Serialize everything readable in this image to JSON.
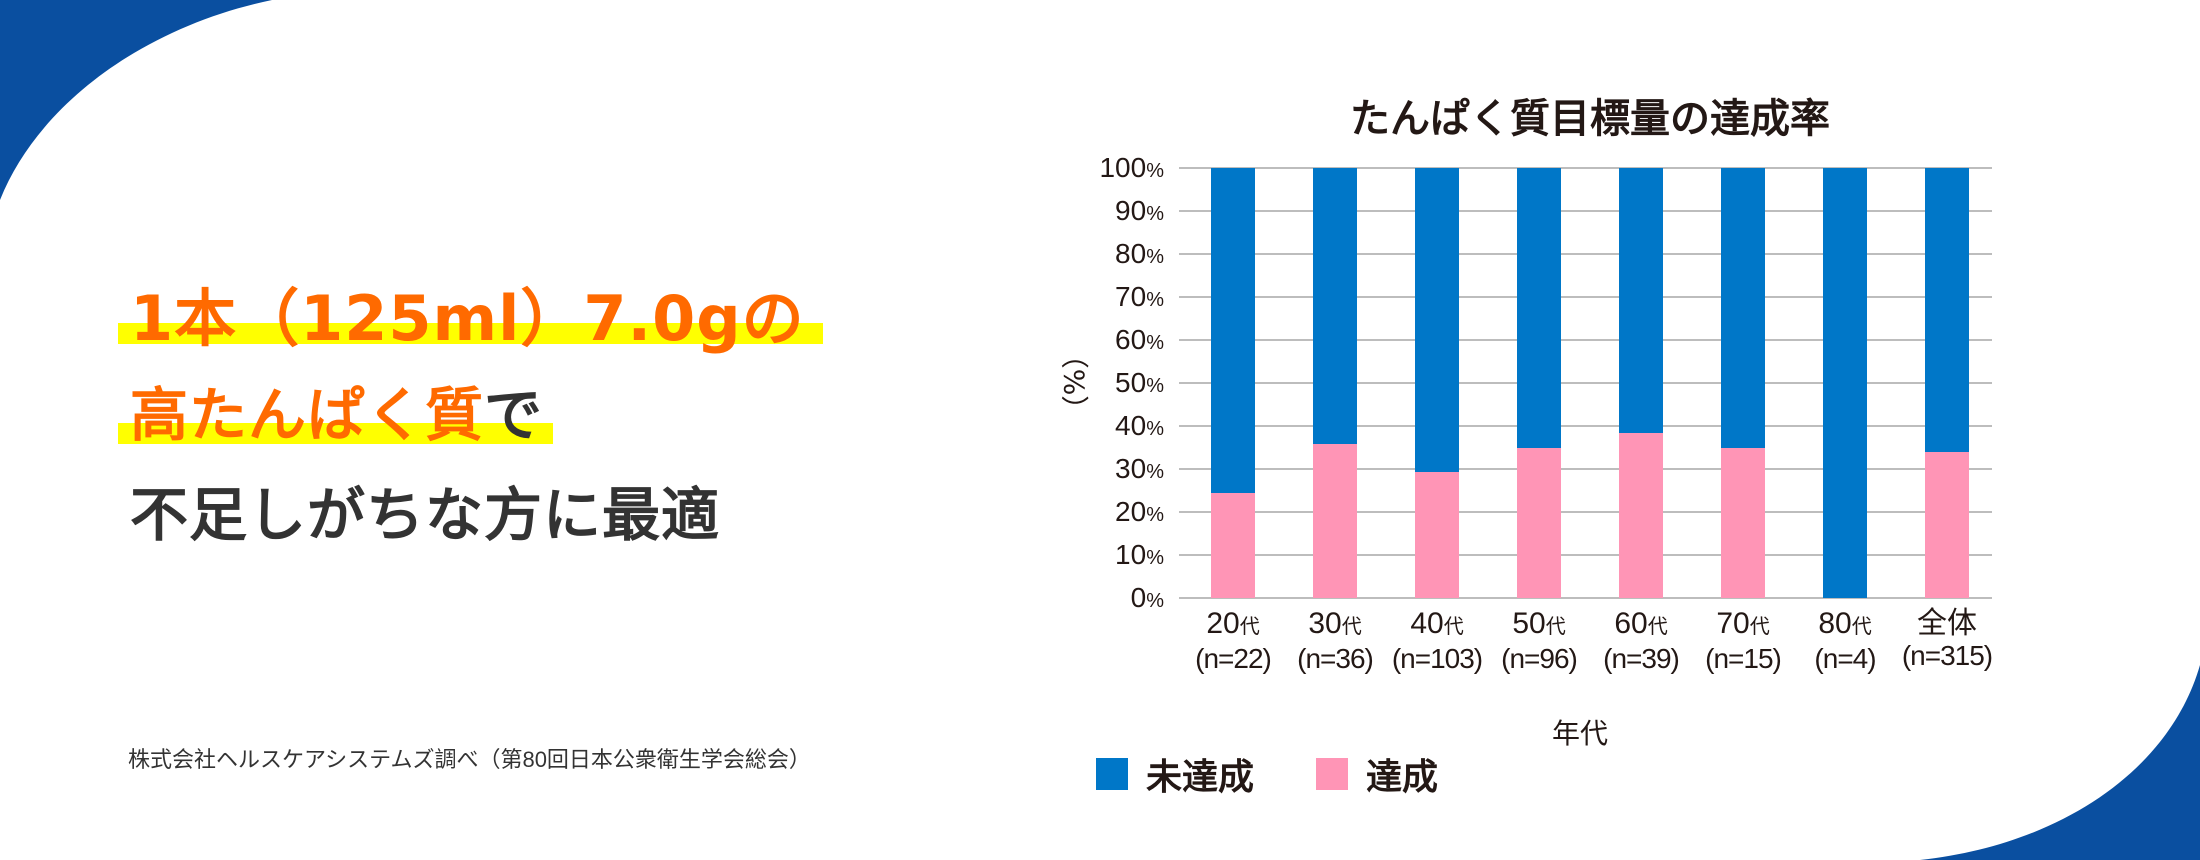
{
  "headline": {
    "line1": "1本（125ml）7.0gの",
    "line2_highlight": "高たんぱく質",
    "line2_rest": "で",
    "line3": "不足しがちな方に最適"
  },
  "source_note": "株式会社ヘルスケアシステムズ調べ（第80回日本公衆衛生学会総会）",
  "colors": {
    "brand_blue": "#0a4fa0",
    "not_achieved": "#0077c8",
    "achieved": "#ff95b6",
    "headline_orange": "#ff6a00",
    "highlight_yellow": "#ffff00",
    "text_dark": "#333333",
    "gridline": "#bdbdbd"
  },
  "chart_data": {
    "type": "bar",
    "stacked": true,
    "title": "たんぱく質目標量の達成率",
    "xlabel": "年代",
    "ylabel": "（%）",
    "ylim": [
      0,
      100
    ],
    "yticks": [
      "0%",
      "10%",
      "20%",
      "30%",
      "40%",
      "50%",
      "60%",
      "70%",
      "80%",
      "90%",
      "100%"
    ],
    "grid": true,
    "legend_position": "bottom-left",
    "categories": [
      "20代",
      "30代",
      "40代",
      "50代",
      "60代",
      "70代",
      "80代",
      "全体"
    ],
    "category_labels": [
      {
        "age": "20",
        "suffix": "代",
        "n": "(n=22)"
      },
      {
        "age": "30",
        "suffix": "代",
        "n": "(n=36)"
      },
      {
        "age": "40",
        "suffix": "代",
        "n": "(n=103)"
      },
      {
        "age": "50",
        "suffix": "代",
        "n": "(n=96)"
      },
      {
        "age": "60",
        "suffix": "代",
        "n": "(n=39)"
      },
      {
        "age": "70",
        "suffix": "代",
        "n": "(n=15)"
      },
      {
        "age": "80",
        "suffix": "代",
        "n": "(n=4)"
      },
      {
        "age": "全体",
        "suffix": "",
        "n": "(n=315)"
      }
    ],
    "sample_sizes": [
      22,
      36,
      103,
      96,
      39,
      15,
      4,
      315
    ],
    "series": [
      {
        "name": "達成",
        "color": "#ff95b6",
        "values": [
          24.4,
          35.8,
          29.3,
          34.9,
          38.4,
          34.9,
          0,
          34.0
        ]
      },
      {
        "name": "未達成",
        "color": "#0077c8",
        "values": [
          75.6,
          64.2,
          70.7,
          65.1,
          61.6,
          65.1,
          100,
          66.0
        ]
      }
    ],
    "legend": [
      "未達成",
      "達成"
    ]
  }
}
